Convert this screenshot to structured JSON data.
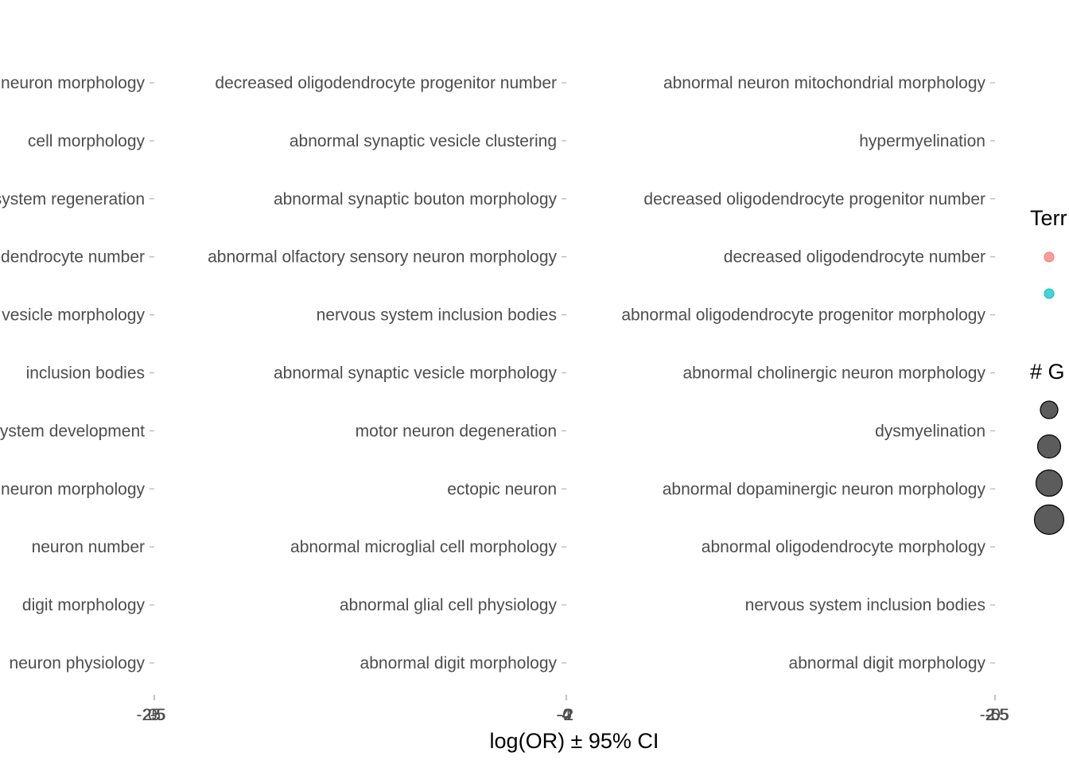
{
  "chart_data": [
    {
      "type": "scatter",
      "xlabel": "",
      "xtick_labels": [
        "-2.5",
        "0",
        "2.5",
        "5",
        "-5"
      ],
      "categories": [
        "neuron physiology",
        "digit morphology",
        "neuron number",
        "neuron morphology",
        "system development",
        "inclusion bodies",
        "vesicle morphology",
        "oligodendrocyte number",
        "system regeneration",
        "cell morphology",
        "neuron morphology"
      ],
      "series": []
    },
    {
      "type": "scatter",
      "xlabel": "",
      "xtick_labels": [
        "-4",
        "-2",
        "0",
        "2"
      ],
      "categories": [
        "abnormal digit morphology",
        "abnormal glial cell physiology",
        "abnormal microglial cell morphology",
        "ectopic neuron",
        "motor neuron degeneration",
        "abnormal synaptic vesicle morphology",
        "nervous system inclusion bodies",
        "abnormal olfactory sensory neuron morphology",
        "abnormal synaptic bouton morphology",
        "abnormal synaptic vesicle clustering",
        "decreased oligodendrocyte progenitor number"
      ],
      "series": []
    },
    {
      "type": "scatter",
      "xlabel": "log(OR) ± 95% CI",
      "xtick_labels": [
        "-5",
        "-2.5",
        "0",
        "2.5"
      ],
      "categories": [
        "abnormal digit morphology",
        "nervous system inclusion bodies",
        "abnormal oligodendrocyte morphology",
        "abnormal dopaminergic neuron morphology",
        "dysmyelination",
        "abnormal cholinergic neuron morphology",
        "abnormal oligodendrocyte progenitor morphology",
        "decreased oligodendrocyte number",
        "decreased oligodendrocyte progenitor number",
        "hypermyelination",
        "abnormal neuron mitochondrial morphology"
      ],
      "series": []
    }
  ],
  "legend": {
    "color_title": "Terr",
    "color_keys": [
      {
        "color": "#f8766d"
      },
      {
        "color": "#00bfc4"
      }
    ],
    "size_title": "# G",
    "size_keys": [
      {
        "level": 1
      },
      {
        "level": 2
      },
      {
        "level": 3
      },
      {
        "level": 4
      }
    ],
    "size_fill": "#333333"
  }
}
